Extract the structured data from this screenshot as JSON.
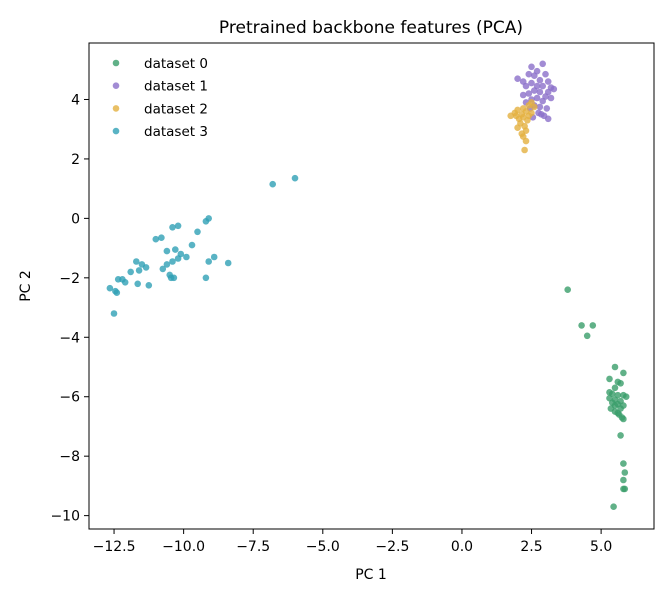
{
  "chart_data": {
    "type": "scatter",
    "title": "Pretrained backbone features (PCA)",
    "xlabel": "PC 1",
    "ylabel": "PC 2",
    "xlim": [
      -13.4,
      6.9
    ],
    "ylim": [
      -10.45,
      5.9
    ],
    "xticks": [
      -12.5,
      -10.0,
      -7.5,
      -5.0,
      -2.5,
      0.0,
      2.5,
      5.0
    ],
    "xtick_labels": [
      "−12.5",
      "−10.0",
      "−7.5",
      "−5.0",
      "−2.5",
      "0.0",
      "2.5",
      "5.0"
    ],
    "yticks": [
      -10,
      -8,
      -6,
      -4,
      -2,
      0,
      2,
      4
    ],
    "ytick_labels": [
      "−10",
      "−8",
      "−6",
      "−4",
      "−2",
      "0",
      "2",
      "4"
    ],
    "grid": false,
    "legend_position": "top-left",
    "series": [
      {
        "name": "dataset 0",
        "color": "#3a9e6a",
        "points": [
          [
            3.8,
            -2.4
          ],
          [
            4.3,
            -3.6
          ],
          [
            4.7,
            -3.6
          ],
          [
            4.5,
            -3.95
          ],
          [
            5.5,
            -5.0
          ],
          [
            5.8,
            -5.2
          ],
          [
            5.3,
            -5.4
          ],
          [
            5.6,
            -5.5
          ],
          [
            5.7,
            -5.55
          ],
          [
            5.5,
            -5.7
          ],
          [
            5.3,
            -5.85
          ],
          [
            5.4,
            -5.9
          ],
          [
            5.6,
            -5.95
          ],
          [
            5.8,
            -5.95
          ],
          [
            5.9,
            -6.0
          ],
          [
            5.3,
            -6.05
          ],
          [
            5.5,
            -6.1
          ],
          [
            5.7,
            -6.15
          ],
          [
            5.4,
            -6.2
          ],
          [
            5.6,
            -6.25
          ],
          [
            5.5,
            -6.3
          ],
          [
            5.8,
            -6.3
          ],
          [
            5.35,
            -6.4
          ],
          [
            5.7,
            -6.4
          ],
          [
            5.5,
            -6.5
          ],
          [
            5.6,
            -6.55
          ],
          [
            5.65,
            -6.6
          ],
          [
            5.75,
            -6.7
          ],
          [
            5.8,
            -6.75
          ],
          [
            5.7,
            -7.3
          ],
          [
            5.8,
            -8.25
          ],
          [
            5.85,
            -8.55
          ],
          [
            5.8,
            -8.8
          ],
          [
            5.85,
            -9.1
          ],
          [
            5.8,
            -9.1
          ],
          [
            5.45,
            -9.7
          ]
        ]
      },
      {
        "name": "dataset 1",
        "color": "#8b6fc9",
        "points": [
          [
            2.5,
            5.1
          ],
          [
            2.9,
            5.2
          ],
          [
            2.7,
            4.95
          ],
          [
            2.4,
            4.85
          ],
          [
            2.6,
            4.8
          ],
          [
            3.0,
            4.85
          ],
          [
            2.0,
            4.7
          ],
          [
            2.2,
            4.6
          ],
          [
            2.8,
            4.65
          ],
          [
            3.1,
            4.6
          ],
          [
            2.5,
            4.55
          ],
          [
            2.3,
            4.45
          ],
          [
            2.7,
            4.45
          ],
          [
            2.9,
            4.45
          ],
          [
            3.2,
            4.4
          ],
          [
            3.3,
            4.35
          ],
          [
            2.6,
            4.3
          ],
          [
            2.8,
            4.25
          ],
          [
            3.1,
            4.25
          ],
          [
            2.4,
            4.2
          ],
          [
            2.2,
            4.15
          ],
          [
            3.0,
            4.1
          ],
          [
            2.7,
            4.05
          ],
          [
            2.5,
            4.0
          ],
          [
            3.2,
            4.05
          ],
          [
            2.9,
            3.95
          ],
          [
            2.3,
            3.9
          ],
          [
            2.6,
            3.8
          ],
          [
            2.8,
            3.75
          ],
          [
            3.05,
            3.7
          ],
          [
            2.45,
            3.7
          ],
          [
            2.75,
            3.55
          ],
          [
            2.95,
            3.45
          ],
          [
            3.1,
            3.35
          ],
          [
            2.55,
            3.4
          ],
          [
            2.85,
            3.5
          ]
        ]
      },
      {
        "name": "dataset 2",
        "color": "#e3b040",
        "points": [
          [
            2.5,
            3.9
          ],
          [
            2.4,
            3.8
          ],
          [
            2.6,
            3.75
          ],
          [
            2.2,
            3.7
          ],
          [
            2.0,
            3.65
          ],
          [
            2.3,
            3.6
          ],
          [
            2.5,
            3.55
          ],
          [
            1.9,
            3.55
          ],
          [
            2.15,
            3.5
          ],
          [
            1.95,
            3.45
          ],
          [
            2.4,
            3.45
          ],
          [
            1.75,
            3.45
          ],
          [
            2.2,
            3.4
          ],
          [
            2.05,
            3.35
          ],
          [
            2.35,
            3.3
          ],
          [
            2.1,
            3.2
          ],
          [
            2.25,
            3.1
          ],
          [
            2.0,
            3.05
          ],
          [
            2.3,
            2.95
          ],
          [
            2.15,
            2.85
          ],
          [
            2.2,
            2.75
          ],
          [
            2.3,
            2.6
          ],
          [
            2.25,
            2.3
          ]
        ]
      },
      {
        "name": "dataset 3",
        "color": "#2fa0b5",
        "points": [
          [
            -6.8,
            1.15
          ],
          [
            -6.0,
            1.35
          ],
          [
            -9.1,
            0.0
          ],
          [
            -9.2,
            -0.1
          ],
          [
            -10.2,
            -0.25
          ],
          [
            -10.4,
            -0.3
          ],
          [
            -9.5,
            -0.45
          ],
          [
            -10.8,
            -0.65
          ],
          [
            -11.0,
            -0.7
          ],
          [
            -9.7,
            -0.9
          ],
          [
            -10.3,
            -1.05
          ],
          [
            -10.6,
            -1.1
          ],
          [
            -10.1,
            -1.2
          ],
          [
            -9.9,
            -1.3
          ],
          [
            -8.9,
            -1.3
          ],
          [
            -10.2,
            -1.35
          ],
          [
            -11.7,
            -1.45
          ],
          [
            -10.4,
            -1.45
          ],
          [
            -9.1,
            -1.45
          ],
          [
            -8.4,
            -1.5
          ],
          [
            -11.5,
            -1.55
          ],
          [
            -10.6,
            -1.55
          ],
          [
            -11.35,
            -1.65
          ],
          [
            -10.75,
            -1.7
          ],
          [
            -11.6,
            -1.75
          ],
          [
            -11.9,
            -1.8
          ],
          [
            -10.5,
            -1.9
          ],
          [
            -10.45,
            -2.0
          ],
          [
            -9.2,
            -2.0
          ],
          [
            -10.35,
            -2.0
          ],
          [
            -12.35,
            -2.05
          ],
          [
            -12.2,
            -2.05
          ],
          [
            -12.1,
            -2.15
          ],
          [
            -11.65,
            -2.2
          ],
          [
            -11.25,
            -2.25
          ],
          [
            -12.65,
            -2.35
          ],
          [
            -12.45,
            -2.45
          ],
          [
            -12.4,
            -2.5
          ],
          [
            -12.5,
            -3.2
          ]
        ]
      }
    ]
  }
}
